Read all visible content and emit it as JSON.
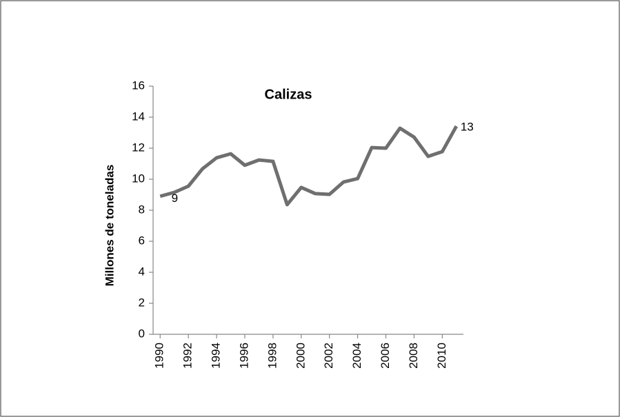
{
  "chart_data": {
    "type": "line",
    "title": "Calizas",
    "y_label": "Millones de toneladas",
    "x": [
      1990,
      1991,
      1992,
      1993,
      1994,
      1995,
      1996,
      1997,
      1998,
      1999,
      2000,
      2001,
      2002,
      2003,
      2004,
      2005,
      2006,
      2007,
      2008,
      2009,
      2010,
      2011
    ],
    "series": [
      {
        "name": "Calizas",
        "color": "#6f6f6f",
        "values": [
          8.9,
          9.15,
          9.55,
          10.67,
          11.38,
          11.64,
          10.9,
          11.24,
          11.15,
          8.36,
          9.47,
          9.07,
          9.02,
          9.82,
          10.04,
          12.04,
          12.0,
          13.29,
          12.71,
          11.47,
          11.78,
          13.42
        ]
      }
    ],
    "annotations": [
      "9",
      "13"
    ],
    "xlim": [
      1989.5,
      2011.5
    ],
    "xticks": [
      1990,
      1992,
      1994,
      1996,
      1998,
      2000,
      2002,
      2004,
      2006,
      2008,
      2010
    ],
    "ylim": [
      0,
      16
    ],
    "yticks": [
      0,
      2,
      4,
      6,
      8,
      10,
      12,
      14,
      16
    ],
    "grid": false
  }
}
